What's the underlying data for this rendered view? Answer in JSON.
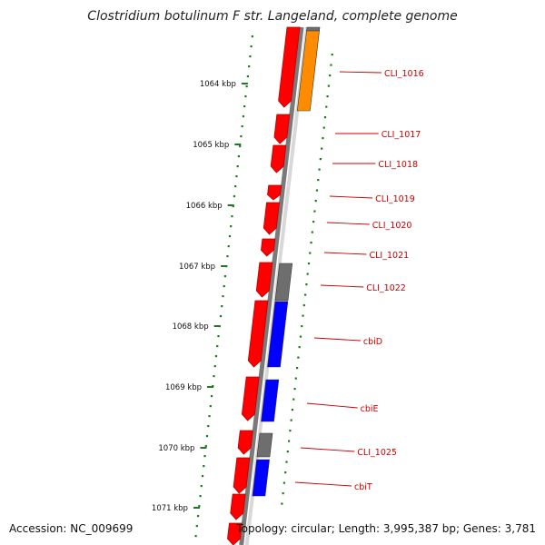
{
  "title": "Clostridium botulinum F str. Langeland, complete genome",
  "footer": {
    "accession": "Accession: NC_009699",
    "stats": "Topology: circular; Length: 3,995,387 bp; Genes: 3,781"
  },
  "colors": {
    "background": "#ffffff",
    "backbone": "#7a7a7a",
    "ruler": "#1f7a1f",
    "gene_label": "#cc0000",
    "cds_forward": "#ff0000",
    "cds_reverse_orange": "#ff8c00",
    "cds_reverse_blue": "#0000ff",
    "cds_reverse_grey": "#6e6e6e"
  },
  "ruler_ticks": [
    "1064 kbp",
    "1065 kbp",
    "1066 kbp",
    "1067 kbp",
    "1068 kbp",
    "1069 kbp",
    "1070 kbp",
    "1071 kbp"
  ],
  "gene_labels": [
    "CLI_1016",
    "CLI_1017",
    "CLI_1018",
    "CLI_1019",
    "CLI_1020",
    "CLI_1021",
    "CLI_1022",
    "cbiD",
    "cbiE",
    "CLI_1025",
    "cbiT"
  ]
}
